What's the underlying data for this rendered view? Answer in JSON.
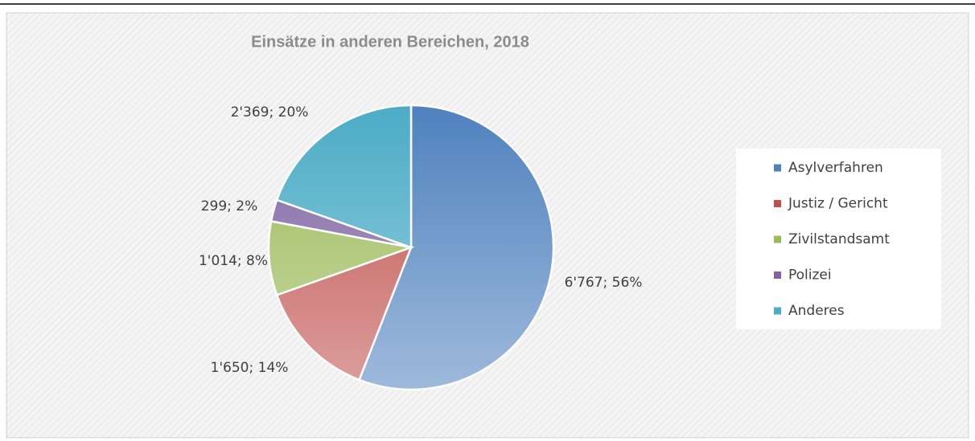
{
  "chart_data": {
    "type": "pie",
    "title": "Einsätze in anderen Bereichen, 2018",
    "categories": [
      "Asylverfahren",
      "Justiz / Gericht",
      "Zivilstandsamt",
      "Polizei",
      "Anderes"
    ],
    "values": [
      6767,
      1650,
      1014,
      299,
      2369
    ],
    "value_labels": [
      "6'767; 56%",
      "1'650; 14%",
      "1'014; 8%",
      "299; 2%",
      "2'369; 20%"
    ],
    "colors": [
      "#4f81bd",
      "#c0504d",
      "#9bbb59",
      "#8064a2",
      "#4bacc6"
    ],
    "legend": "right"
  }
}
